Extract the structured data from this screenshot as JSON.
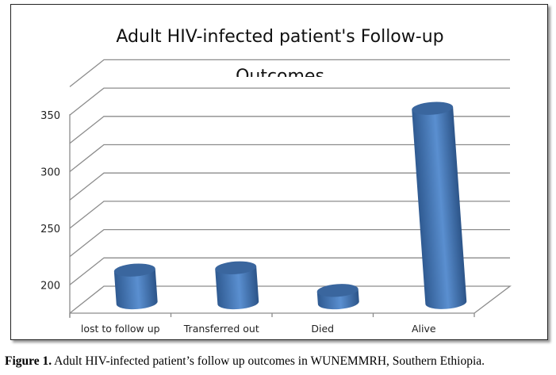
{
  "chart_data": {
    "type": "bar",
    "style": "3d-cylinder",
    "title_line1": "Adult HIV-infected patient's Follow-up",
    "title_line2": "Outcomes",
    "categories": [
      "lost to follow up",
      "Transferred out",
      "Died",
      "Alive"
    ],
    "values": [
      204,
      206,
      186,
      347
    ],
    "ylim": [
      175,
      375
    ],
    "yticks": [
      200,
      250,
      300,
      350
    ],
    "minor_step": 25,
    "grid": true,
    "bar_color": "#4f81bd",
    "xlabel": "",
    "ylabel": ""
  },
  "caption": {
    "label": "Figure 1.",
    "text": " Adult HIV-infected patient’s follow up outcomes in WUNEMMRH, Southern Ethiopia."
  }
}
